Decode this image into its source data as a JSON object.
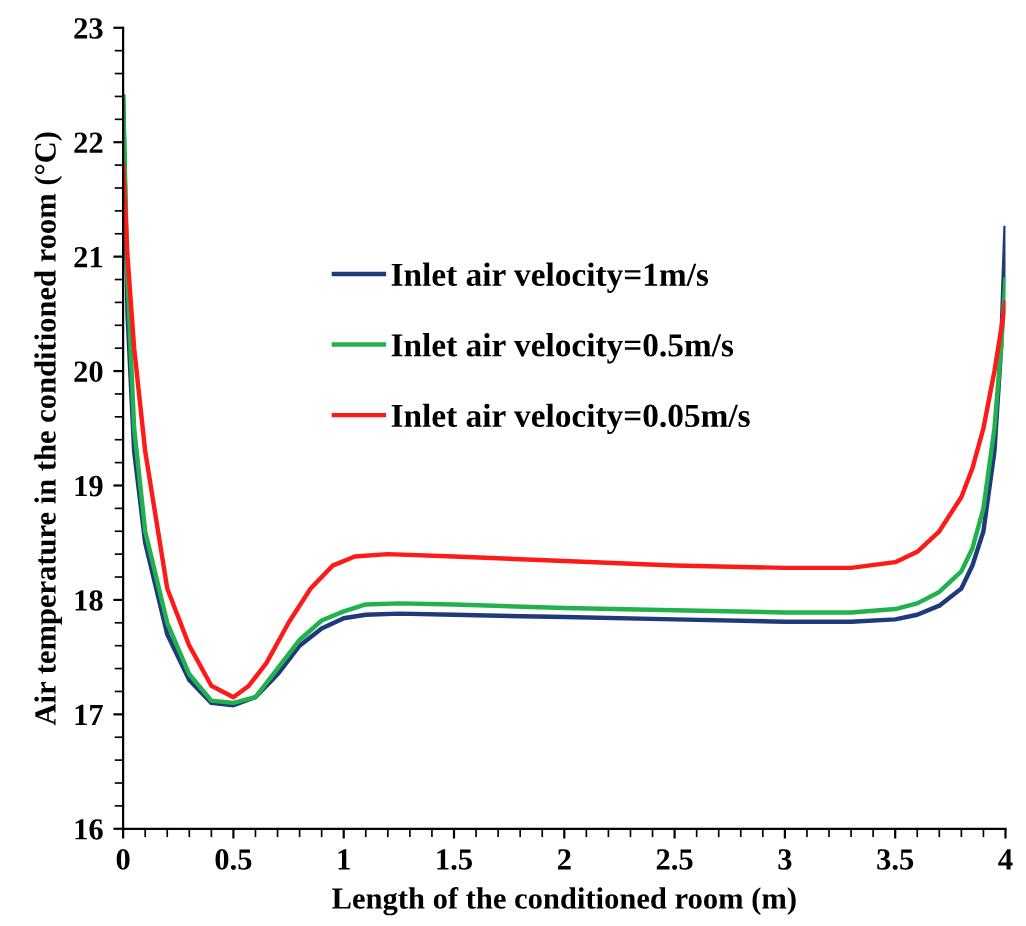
{
  "chart_data": {
    "type": "line",
    "xlabel": "Length of the conditioned room (m)",
    "ylabel": "Air temperature in the conditioned room (°C)",
    "xlim": [
      0,
      4
    ],
    "xticks": [
      0,
      0.5,
      1,
      1.5,
      2,
      2.5,
      3,
      3.5,
      4
    ],
    "ylim": [
      16,
      23
    ],
    "yticks": [
      16,
      17,
      18,
      19,
      20,
      21,
      22,
      23
    ],
    "grid": false,
    "legend": "center",
    "marker": "none",
    "line_style": "solid",
    "series": [
      {
        "name": "Inlet air velocity=1m/s",
        "color": "#1f3a7a",
        "x": [
          0,
          0.02,
          0.05,
          0.1,
          0.2,
          0.3,
          0.4,
          0.5,
          0.6,
          0.7,
          0.8,
          0.9,
          1.0,
          1.1,
          1.25,
          1.5,
          2,
          2.5,
          3,
          3.3,
          3.5,
          3.6,
          3.7,
          3.8,
          3.85,
          3.9,
          3.95,
          3.98,
          4.0
        ],
        "values": [
          22.4,
          20.5,
          19.3,
          18.5,
          17.7,
          17.3,
          17.1,
          17.08,
          17.15,
          17.35,
          17.6,
          17.75,
          17.84,
          17.87,
          17.88,
          17.87,
          17.85,
          17.83,
          17.81,
          17.81,
          17.83,
          17.87,
          17.95,
          18.1,
          18.3,
          18.6,
          19.3,
          20.2,
          21.25
        ]
      },
      {
        "name": "Inlet air velocity=0.5m/s",
        "color": "#22b14c",
        "x": [
          0,
          0.02,
          0.05,
          0.1,
          0.2,
          0.3,
          0.4,
          0.5,
          0.6,
          0.7,
          0.8,
          0.9,
          1.0,
          1.1,
          1.25,
          1.5,
          2,
          2.5,
          3,
          3.3,
          3.5,
          3.6,
          3.7,
          3.8,
          3.85,
          3.9,
          3.95,
          3.98,
          4.0
        ],
        "values": [
          22.4,
          20.8,
          19.5,
          18.6,
          17.8,
          17.35,
          17.12,
          17.1,
          17.15,
          17.4,
          17.65,
          17.82,
          17.9,
          17.96,
          17.97,
          17.96,
          17.93,
          17.91,
          17.89,
          17.89,
          17.92,
          17.97,
          18.07,
          18.25,
          18.45,
          18.8,
          19.5,
          20.2,
          20.8
        ]
      },
      {
        "name": "Inlet air velocity=0.05m/s",
        "color": "#ff1a1a",
        "x": [
          0,
          0.02,
          0.05,
          0.1,
          0.15,
          0.2,
          0.3,
          0.4,
          0.5,
          0.57,
          0.65,
          0.75,
          0.85,
          0.95,
          1.05,
          1.2,
          1.5,
          2,
          2.5,
          3,
          3.3,
          3.5,
          3.6,
          3.7,
          3.8,
          3.85,
          3.9,
          3.95,
          4.0
        ],
        "values": [
          21.8,
          21.0,
          20.2,
          19.3,
          18.7,
          18.1,
          17.6,
          17.25,
          17.15,
          17.25,
          17.45,
          17.8,
          18.1,
          18.3,
          18.38,
          18.4,
          18.38,
          18.34,
          18.3,
          18.28,
          18.28,
          18.33,
          18.42,
          18.6,
          18.9,
          19.15,
          19.5,
          20.0,
          20.6
        ]
      }
    ]
  }
}
